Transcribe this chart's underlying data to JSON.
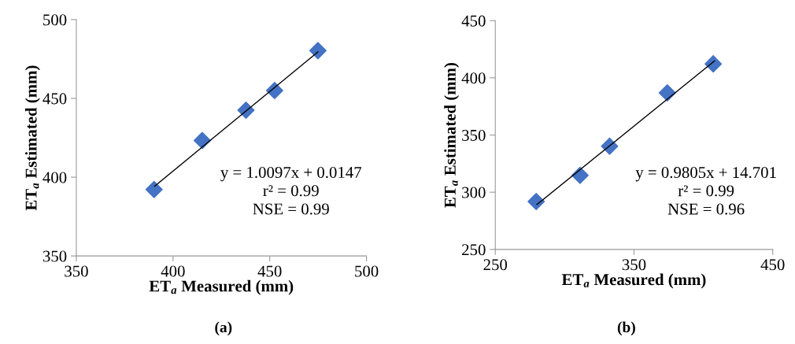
{
  "chart_data": [
    {
      "type": "scatter",
      "xlabel": "ET$_{a}$ Measured (mm)",
      "ylabel": "ET$_{a}$ Estimated (mm)",
      "xlim": [
        350,
        500
      ],
      "ylim": [
        350,
        500
      ],
      "xticks": [
        350,
        400,
        450,
        500
      ],
      "yticks": [
        350,
        400,
        450,
        500
      ],
      "grid": false,
      "legend": false,
      "series": [
        {
          "marker": "diamond",
          "color": "#4472c4",
          "x": [
            390.2,
            415.1,
            437.7,
            452.5,
            474.9
          ],
          "values": [
            392.2,
            423.3,
            442.5,
            455,
            480.3
          ]
        },
        {
          "type": "line",
          "marker": "none",
          "line_style": "solid",
          "color": "#000000",
          "x": [
            390.5,
            474.9
          ],
          "values": [
            394.3,
            479.5
          ]
        }
      ],
      "annotations": [
        "y = 1.0097x + 0.0147\nr² = 0.99\nNSE = 0.99",
        "(a)"
      ]
    },
    {
      "type": "scatter",
      "xlabel": "ET$_{a}$ Measured (mm)",
      "ylabel": "ET$_{a}$ Estimated (mm)",
      "xlim": [
        250,
        450
      ],
      "ylim": [
        250,
        450
      ],
      "xticks": [
        250,
        350,
        450
      ],
      "yticks": [
        250,
        300,
        350,
        400,
        450
      ],
      "grid": false,
      "legend": false,
      "series": [
        {
          "marker": "diamond",
          "color": "#4472c4",
          "x": [
            279.5,
            311.1,
            332.4,
            374.0,
            407.1
          ],
          "values": [
            291.9,
            314.8,
            340.2,
            386.8,
            412.2
          ]
        },
        {
          "type": "line",
          "marker": "none",
          "line_style": "solid",
          "color": "#000000",
          "x": [
            280,
            408
          ],
          "values": [
            289.2,
            414.7
          ]
        }
      ],
      "annotations": [
        "y = 0.9805x + 14.701\nr² = 0.99\nNSE = 0.96",
        "(b)"
      ]
    }
  ]
}
